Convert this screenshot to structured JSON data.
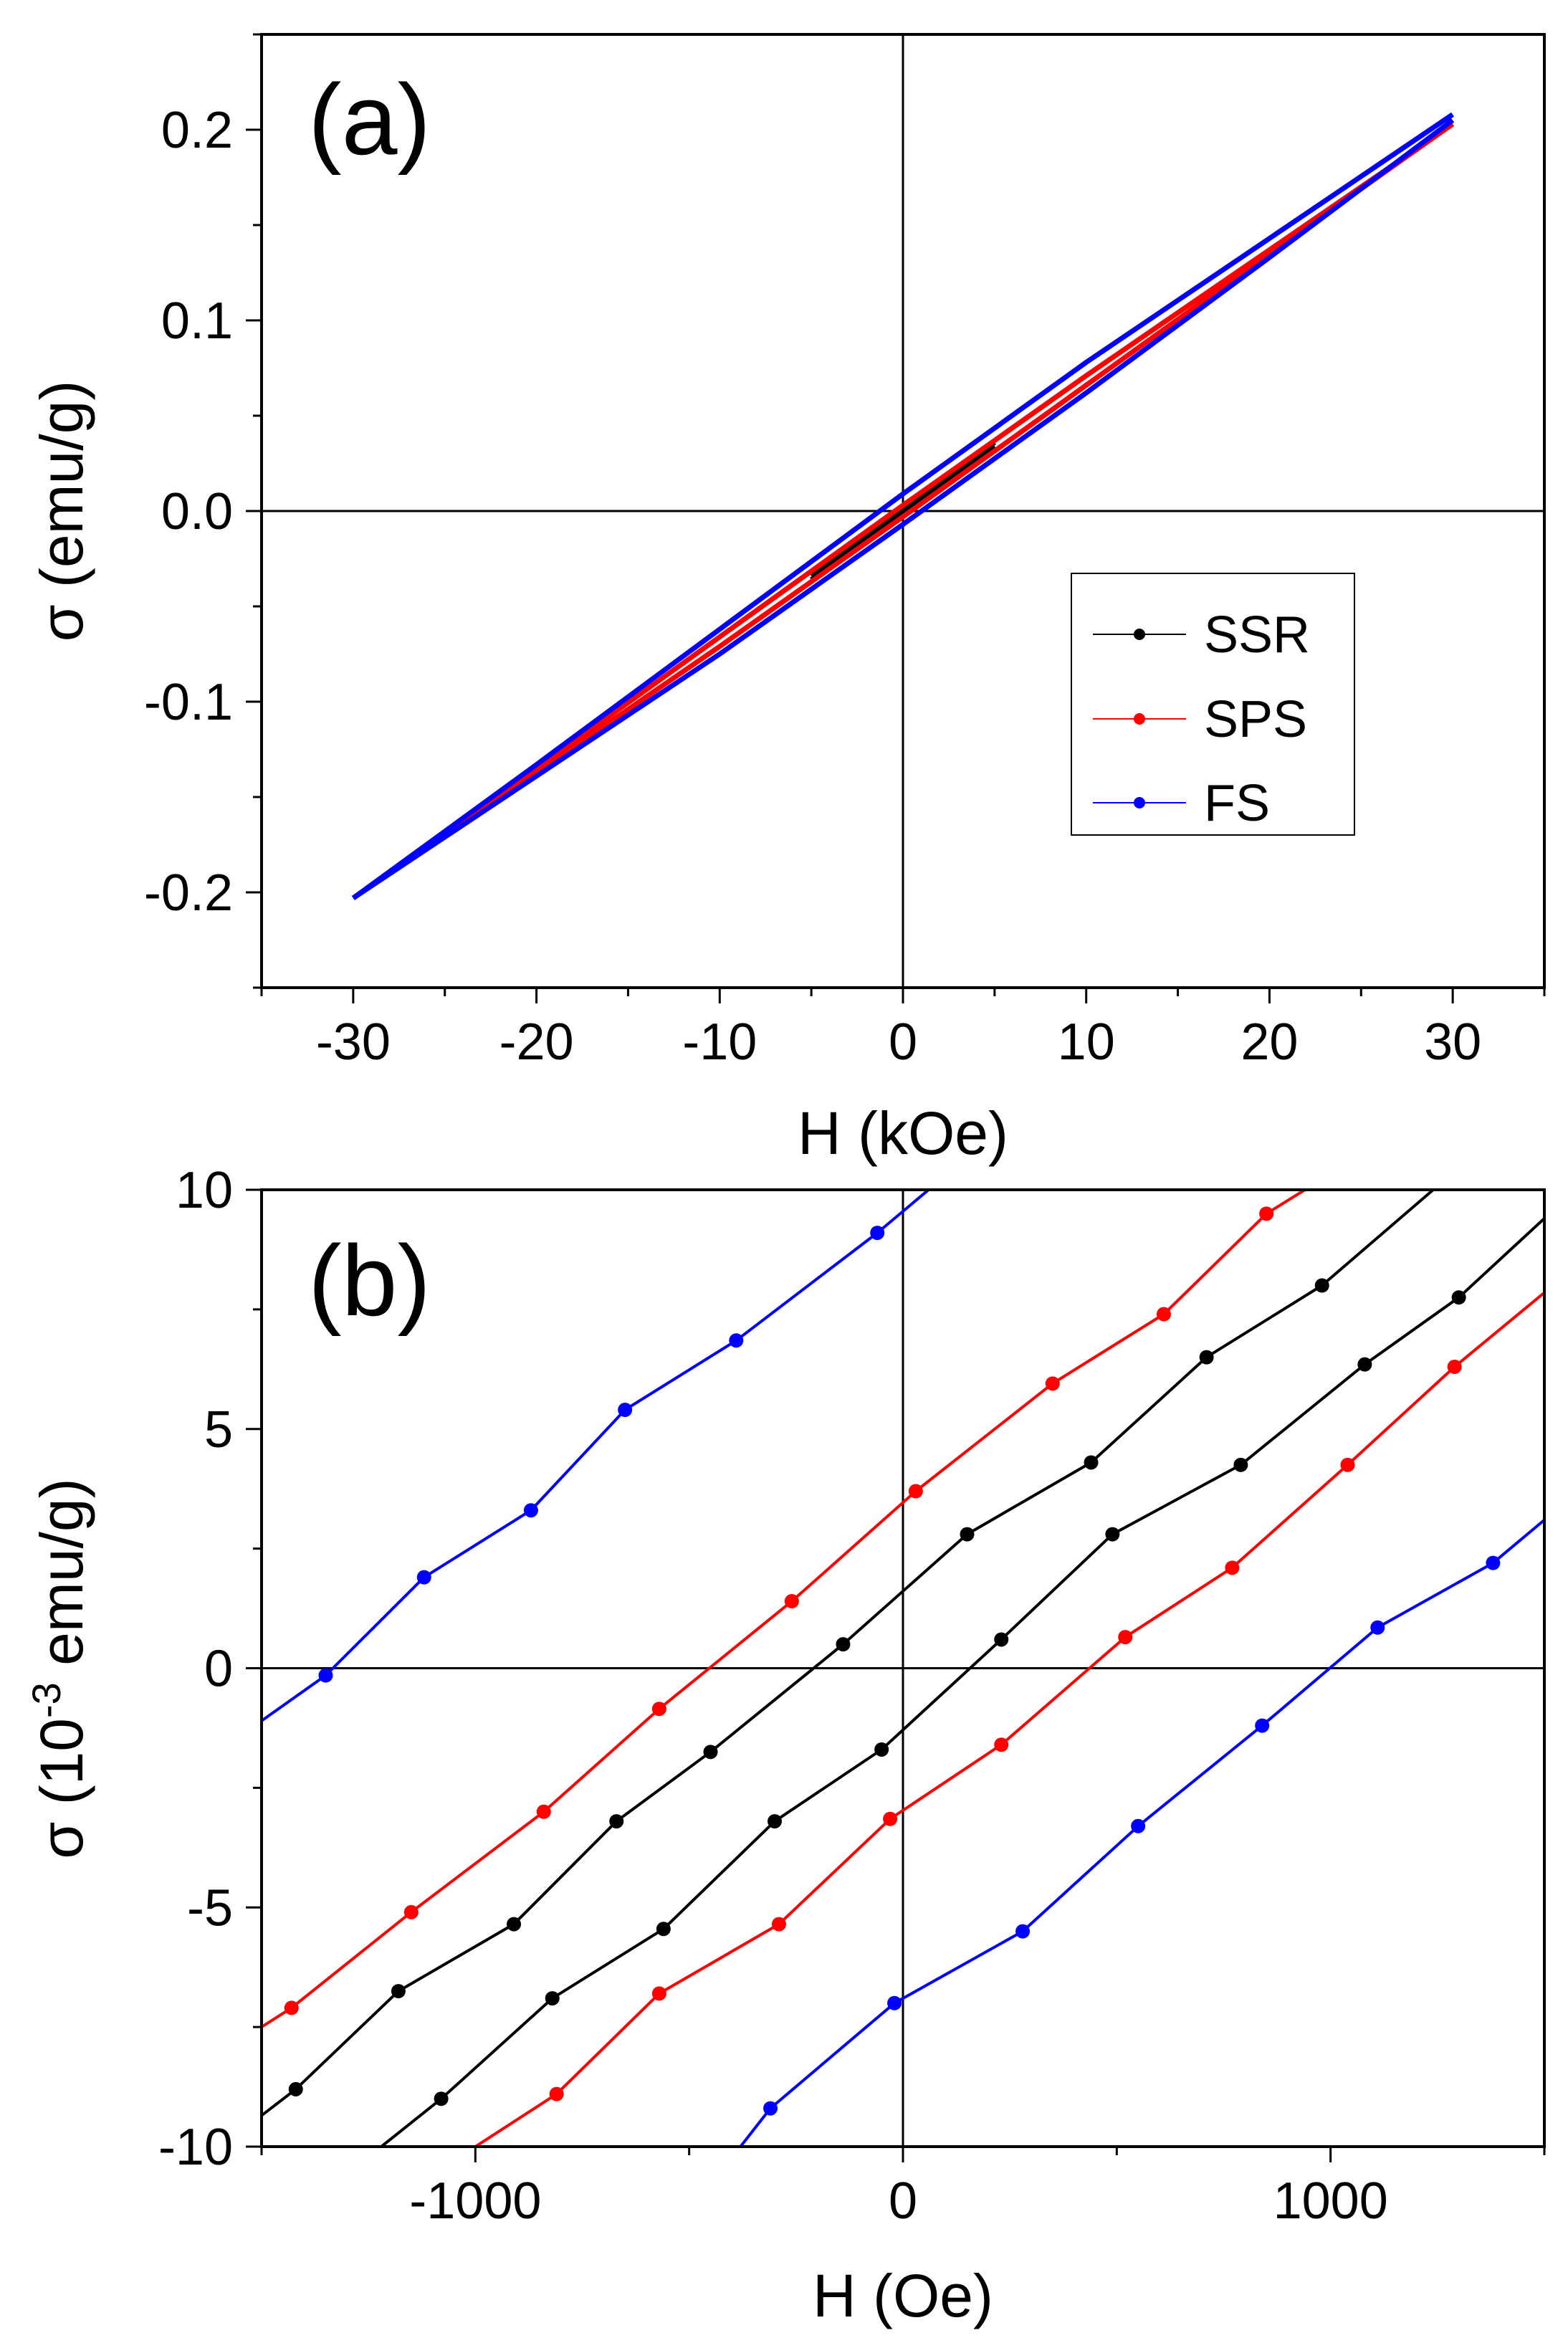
{
  "chart_data": [
    {
      "type": "line",
      "panel_label": "(a)",
      "xlabel": "H (kOe)",
      "ylabel": "σ (emu/g)",
      "xlim": [
        -35,
        35
      ],
      "ylim": [
        -0.25,
        0.25
      ],
      "xticks": [
        -30,
        -20,
        -10,
        0,
        10,
        20,
        30
      ],
      "yticks": [
        -0.2,
        -0.1,
        0.0,
        0.1,
        0.2
      ],
      "xtick_labels": [
        "-30",
        "-20",
        "-10",
        "0",
        "10",
        "20",
        "30"
      ],
      "ytick_labels": [
        "-0.2",
        "-0.1",
        "0.0",
        "0.1",
        "0.2"
      ],
      "legend_position": "center-right",
      "series": [
        {
          "name": "SSR",
          "color": "#000000",
          "branches": [
            {
              "x": [
                -5,
                0,
                5
              ],
              "y": [
                -0.036,
                -0.001,
                0.034
              ]
            },
            {
              "x": [
                -5,
                0,
                5
              ],
              "y": [
                -0.034,
                0.001,
                0.036
              ]
            }
          ]
        },
        {
          "name": "SPS",
          "color": "#ff0000",
          "branches": [
            {
              "x": [
                -30,
                -20,
                -10,
                0,
                10,
                20,
                30
              ],
              "y": [
                -0.203,
                -0.137,
                -0.071,
                -0.003,
                0.066,
                0.135,
                0.203
              ]
            },
            {
              "x": [
                -30,
                -20,
                -10,
                0,
                10,
                20,
                30
              ],
              "y": [
                -0.203,
                -0.135,
                -0.066,
                0.003,
                0.071,
                0.137,
                0.203
              ]
            }
          ]
        },
        {
          "name": "FS",
          "color": "#0000ff",
          "branches": [
            {
              "x": [
                -30,
                -20,
                -10,
                0,
                10,
                20,
                30
              ],
              "y": [
                -0.203,
                -0.139,
                -0.075,
                -0.007,
                0.062,
                0.133,
                0.205
              ]
            },
            {
              "x": [
                -30,
                -20,
                -10,
                0,
                10,
                20,
                30
              ],
              "y": [
                -0.203,
                -0.133,
                -0.062,
                0.009,
                0.078,
                0.143,
                0.208
              ]
            }
          ]
        }
      ]
    },
    {
      "type": "line",
      "panel_label": "(b)",
      "xlabel": "H (Oe)",
      "ylabel_prefix": "σ (10",
      "ylabel_exponent": "-3",
      "ylabel_suffix": " emu/g)",
      "xlim": [
        -1500,
        1500
      ],
      "ylim": [
        -10,
        10
      ],
      "xticks": [
        -1000,
        0,
        1000
      ],
      "yticks": [
        -10,
        -5,
        0,
        5,
        10
      ],
      "xtick_labels": [
        "-1000",
        "0",
        "1000"
      ],
      "ytick_labels": [
        "-10",
        "-5",
        "0",
        "5",
        "10"
      ],
      "series": [
        {
          "name": "FS",
          "color": "#0000ff",
          "branches": [
            {
              "x": [
                -1500,
                -1350,
                -1120,
                -870,
                -650,
                -390,
                -60,
                60
              ],
              "y": [
                -1.1,
                -0.15,
                1.9,
                3.3,
                5.4,
                6.85,
                9.1,
                10.0
              ],
              "markers": [
                [
                  -1350,
                  -0.15
                ],
                [
                  -1120,
                  1.9
                ],
                [
                  -870,
                  3.3
                ],
                [
                  -650,
                  5.4
                ],
                [
                  -390,
                  6.85
                ],
                [
                  -60,
                  9.1
                ]
              ]
            },
            {
              "x": [
                -380,
                -310,
                -20,
                280,
                550,
                840,
                1110,
                1380,
                1500
              ],
              "y": [
                -10.0,
                -9.2,
                -7.0,
                -5.5,
                -3.3,
                -1.2,
                0.85,
                2.2,
                3.1
              ],
              "markers": [
                [
                  -310,
                  -9.2
                ],
                [
                  -20,
                  -7.0
                ],
                [
                  280,
                  -5.5
                ],
                [
                  550,
                  -3.3
                ],
                [
                  840,
                  -1.2
                ],
                [
                  1110,
                  0.85
                ],
                [
                  1380,
                  2.2
                ]
              ]
            }
          ]
        },
        {
          "name": "SPS",
          "color": "#ff0000",
          "branches": [
            {
              "x": [
                -1500,
                -1430,
                -1150,
                -840,
                -570,
                -260,
                30,
                350,
                610,
                850,
                940
              ],
              "y": [
                -7.5,
                -7.1,
                -5.1,
                -3.0,
                -0.85,
                1.4,
                3.7,
                5.95,
                7.4,
                9.5,
                10.0
              ],
              "markers": [
                [
                  -1430,
                  -7.1
                ],
                [
                  -1150,
                  -5.1
                ],
                [
                  -840,
                  -3.0
                ],
                [
                  -570,
                  -0.85
                ],
                [
                  -260,
                  1.4
                ],
                [
                  30,
                  3.7
                ],
                [
                  350,
                  5.95
                ],
                [
                  610,
                  7.4
                ],
                [
                  850,
                  9.5
                ]
              ]
            },
            {
              "x": [
                -1000,
                -810,
                -570,
                -290,
                -30,
                230,
                520,
                770,
                1040,
                1290,
                1500
              ],
              "y": [
                -10.0,
                -8.9,
                -6.8,
                -5.35,
                -3.15,
                -1.6,
                0.65,
                2.1,
                4.25,
                6.3,
                7.85
              ],
              "markers": [
                [
                  -810,
                  -8.9
                ],
                [
                  -570,
                  -6.8
                ],
                [
                  -290,
                  -5.35
                ],
                [
                  -30,
                  -3.15
                ],
                [
                  230,
                  -1.6
                ],
                [
                  520,
                  0.65
                ],
                [
                  770,
                  2.1
                ],
                [
                  1040,
                  4.25
                ],
                [
                  1290,
                  6.3
                ]
              ]
            }
          ]
        },
        {
          "name": "SSR",
          "color": "#000000",
          "branches": [
            {
              "x": [
                -1500,
                -1420,
                -1180,
                -910,
                -670,
                -450,
                -140,
                150,
                440,
                710,
                980,
                1240
              ],
              "y": [
                -9.35,
                -8.8,
                -6.75,
                -5.35,
                -3.2,
                -1.75,
                0.5,
                2.8,
                4.3,
                6.5,
                8.0,
                10.0
              ],
              "markers": [
                [
                  -1420,
                  -8.8
                ],
                [
                  -1180,
                  -6.75
                ],
                [
                  -910,
                  -5.35
                ],
                [
                  -670,
                  -3.2
                ],
                [
                  -450,
                  -1.75
                ],
                [
                  -140,
                  0.5
                ],
                [
                  150,
                  2.8
                ],
                [
                  440,
                  4.3
                ],
                [
                  710,
                  6.5
                ],
                [
                  980,
                  8.0
                ]
              ]
            },
            {
              "x": [
                -1220,
                -1080,
                -820,
                -560,
                -300,
                -50,
                230,
                490,
                790,
                1080,
                1300,
                1500
              ],
              "y": [
                -10.0,
                -9.0,
                -6.9,
                -5.45,
                -3.2,
                -1.7,
                0.6,
                2.8,
                4.25,
                6.35,
                7.75,
                9.4
              ],
              "markers": [
                [
                  -1080,
                  -9.0
                ],
                [
                  -820,
                  -6.9
                ],
                [
                  -560,
                  -5.45
                ],
                [
                  -300,
                  -3.2
                ],
                [
                  -50,
                  -1.7
                ],
                [
                  230,
                  0.6
                ],
                [
                  490,
                  2.8
                ],
                [
                  790,
                  4.25
                ],
                [
                  1080,
                  6.35
                ],
                [
                  1300,
                  7.75
                ]
              ]
            }
          ]
        }
      ]
    }
  ]
}
